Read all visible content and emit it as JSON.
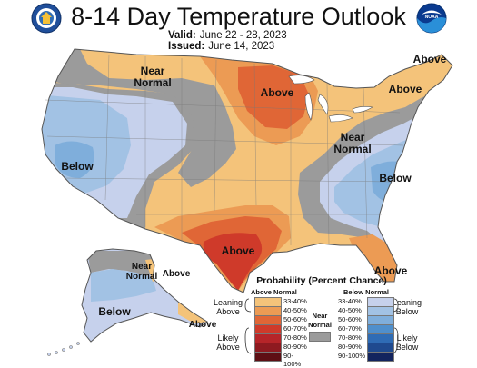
{
  "header": {
    "title": "8-14 Day Temperature Outlook",
    "valid_label": "Valid:",
    "valid_value": "June 22 - 28, 2023",
    "issued_label": "Issued:",
    "issued_value": "June 14, 2023"
  },
  "logos": {
    "left": {
      "name": "commerce-seal",
      "lettering": "U.S. Department of Commerce"
    },
    "right": {
      "name": "noaa-logo",
      "lettering": "NOAA"
    }
  },
  "map": {
    "labels": {
      "northwest_near_normal": "Near\nNormal",
      "north_central_above": "Above",
      "west_below": "Below",
      "northeast_above": "Above",
      "maine_above": "Above",
      "east_near_normal": "Near\nNormal",
      "southeast_below": "Below",
      "texas_above": "Above",
      "florida_above": "Above",
      "alaska_near_normal": "Near\nNormal",
      "alaska_east_above": "Above",
      "alaska_below": "Below",
      "alaska_south_above": "Above"
    },
    "colors": {
      "near_normal": "#9b9b9b",
      "above_33_40": "#f4c37a",
      "above_40_50": "#ec9b54",
      "above_50_60": "#e06636",
      "above_60_70": "#cf3a2a",
      "below_33_40": "#c6d1ec",
      "below_40_50": "#a2c2e4",
      "below_50_60": "#7faedb"
    }
  },
  "legend": {
    "title": "Probability (Percent Chance)",
    "above_header": "Above Normal",
    "below_header": "Below Normal",
    "near_normal_label": "Near\nNormal",
    "leaning_above": "Leaning\nAbove",
    "likely_above": "Likely\nAbove",
    "leaning_below": "Leaning\nBelow",
    "likely_below": "Likely\nBelow",
    "above_bins": [
      {
        "label": "33-40%",
        "color": "#f4c37a"
      },
      {
        "label": "40-50%",
        "color": "#ec9b54"
      },
      {
        "label": "50-60%",
        "color": "#e06636"
      },
      {
        "label": "60-70%",
        "color": "#cf3a2a"
      },
      {
        "label": "70-80%",
        "color": "#b62529"
      },
      {
        "label": "80-90%",
        "color": "#8e1a20"
      },
      {
        "label": "90-100%",
        "color": "#5e0f14"
      }
    ],
    "below_bins": [
      {
        "label": "33-40%",
        "color": "#c6d1ec"
      },
      {
        "label": "40-50%",
        "color": "#a2c2e4"
      },
      {
        "label": "50-60%",
        "color": "#7faedb"
      },
      {
        "label": "60-70%",
        "color": "#4f8fcc"
      },
      {
        "label": "70-80%",
        "color": "#2f6cb5"
      },
      {
        "label": "80-90%",
        "color": "#1f4a8f"
      },
      {
        "label": "90-100%",
        "color": "#13245e"
      }
    ],
    "near_normal_color": "#9b9b9b"
  }
}
